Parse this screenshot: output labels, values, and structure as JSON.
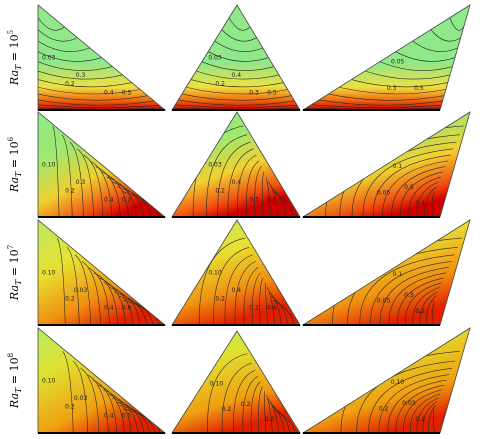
{
  "rows": [
    {
      "label": {
        "base": "Ra",
        "sub": "T",
        "rest": " = 10",
        "exp": "5"
      },
      "panels": [
        [
          "0.03",
          "0.2",
          "0.3",
          "0.4",
          "0.5"
        ],
        [
          "0.03",
          "0.2",
          "0.4",
          "0.3",
          "0.5"
        ],
        [
          "0.05",
          "0.3",
          "0.5"
        ]
      ]
    },
    {
      "label": {
        "base": "Ra",
        "sub": "T",
        "rest": " = 10",
        "exp": "6"
      },
      "panels": [
        [
          "0.10",
          "0.2",
          "0.3",
          "0.4",
          "0.2"
        ],
        [
          "0.03",
          "0.2",
          "0.4",
          "0.3",
          "0.6"
        ],
        [
          "0.1",
          "0.05",
          "0.5",
          "0.4"
        ]
      ]
    },
    {
      "label": {
        "base": "Ra",
        "sub": "T",
        "rest": " = 10",
        "exp": "7"
      },
      "panels": [
        [
          "0.10",
          "0.2",
          "0.03",
          "0.4",
          "0.6"
        ],
        [
          "0.10",
          "0.2",
          "0.4",
          "0.2",
          "0.6"
        ],
        [
          "0.1",
          "0.05",
          "0.3",
          "0.2"
        ]
      ]
    },
    {
      "label": {
        "base": "Ra",
        "sub": "T",
        "rest": " = 10",
        "exp": "8"
      },
      "panels": [
        [
          "0.10",
          "0.2",
          "0.03",
          "0.4",
          "0.5"
        ],
        [
          "0.10",
          "0.2",
          "0.2",
          "0.2"
        ],
        [
          "0.10",
          "0.2",
          "0.03",
          "0.2"
        ]
      ]
    }
  ]
}
